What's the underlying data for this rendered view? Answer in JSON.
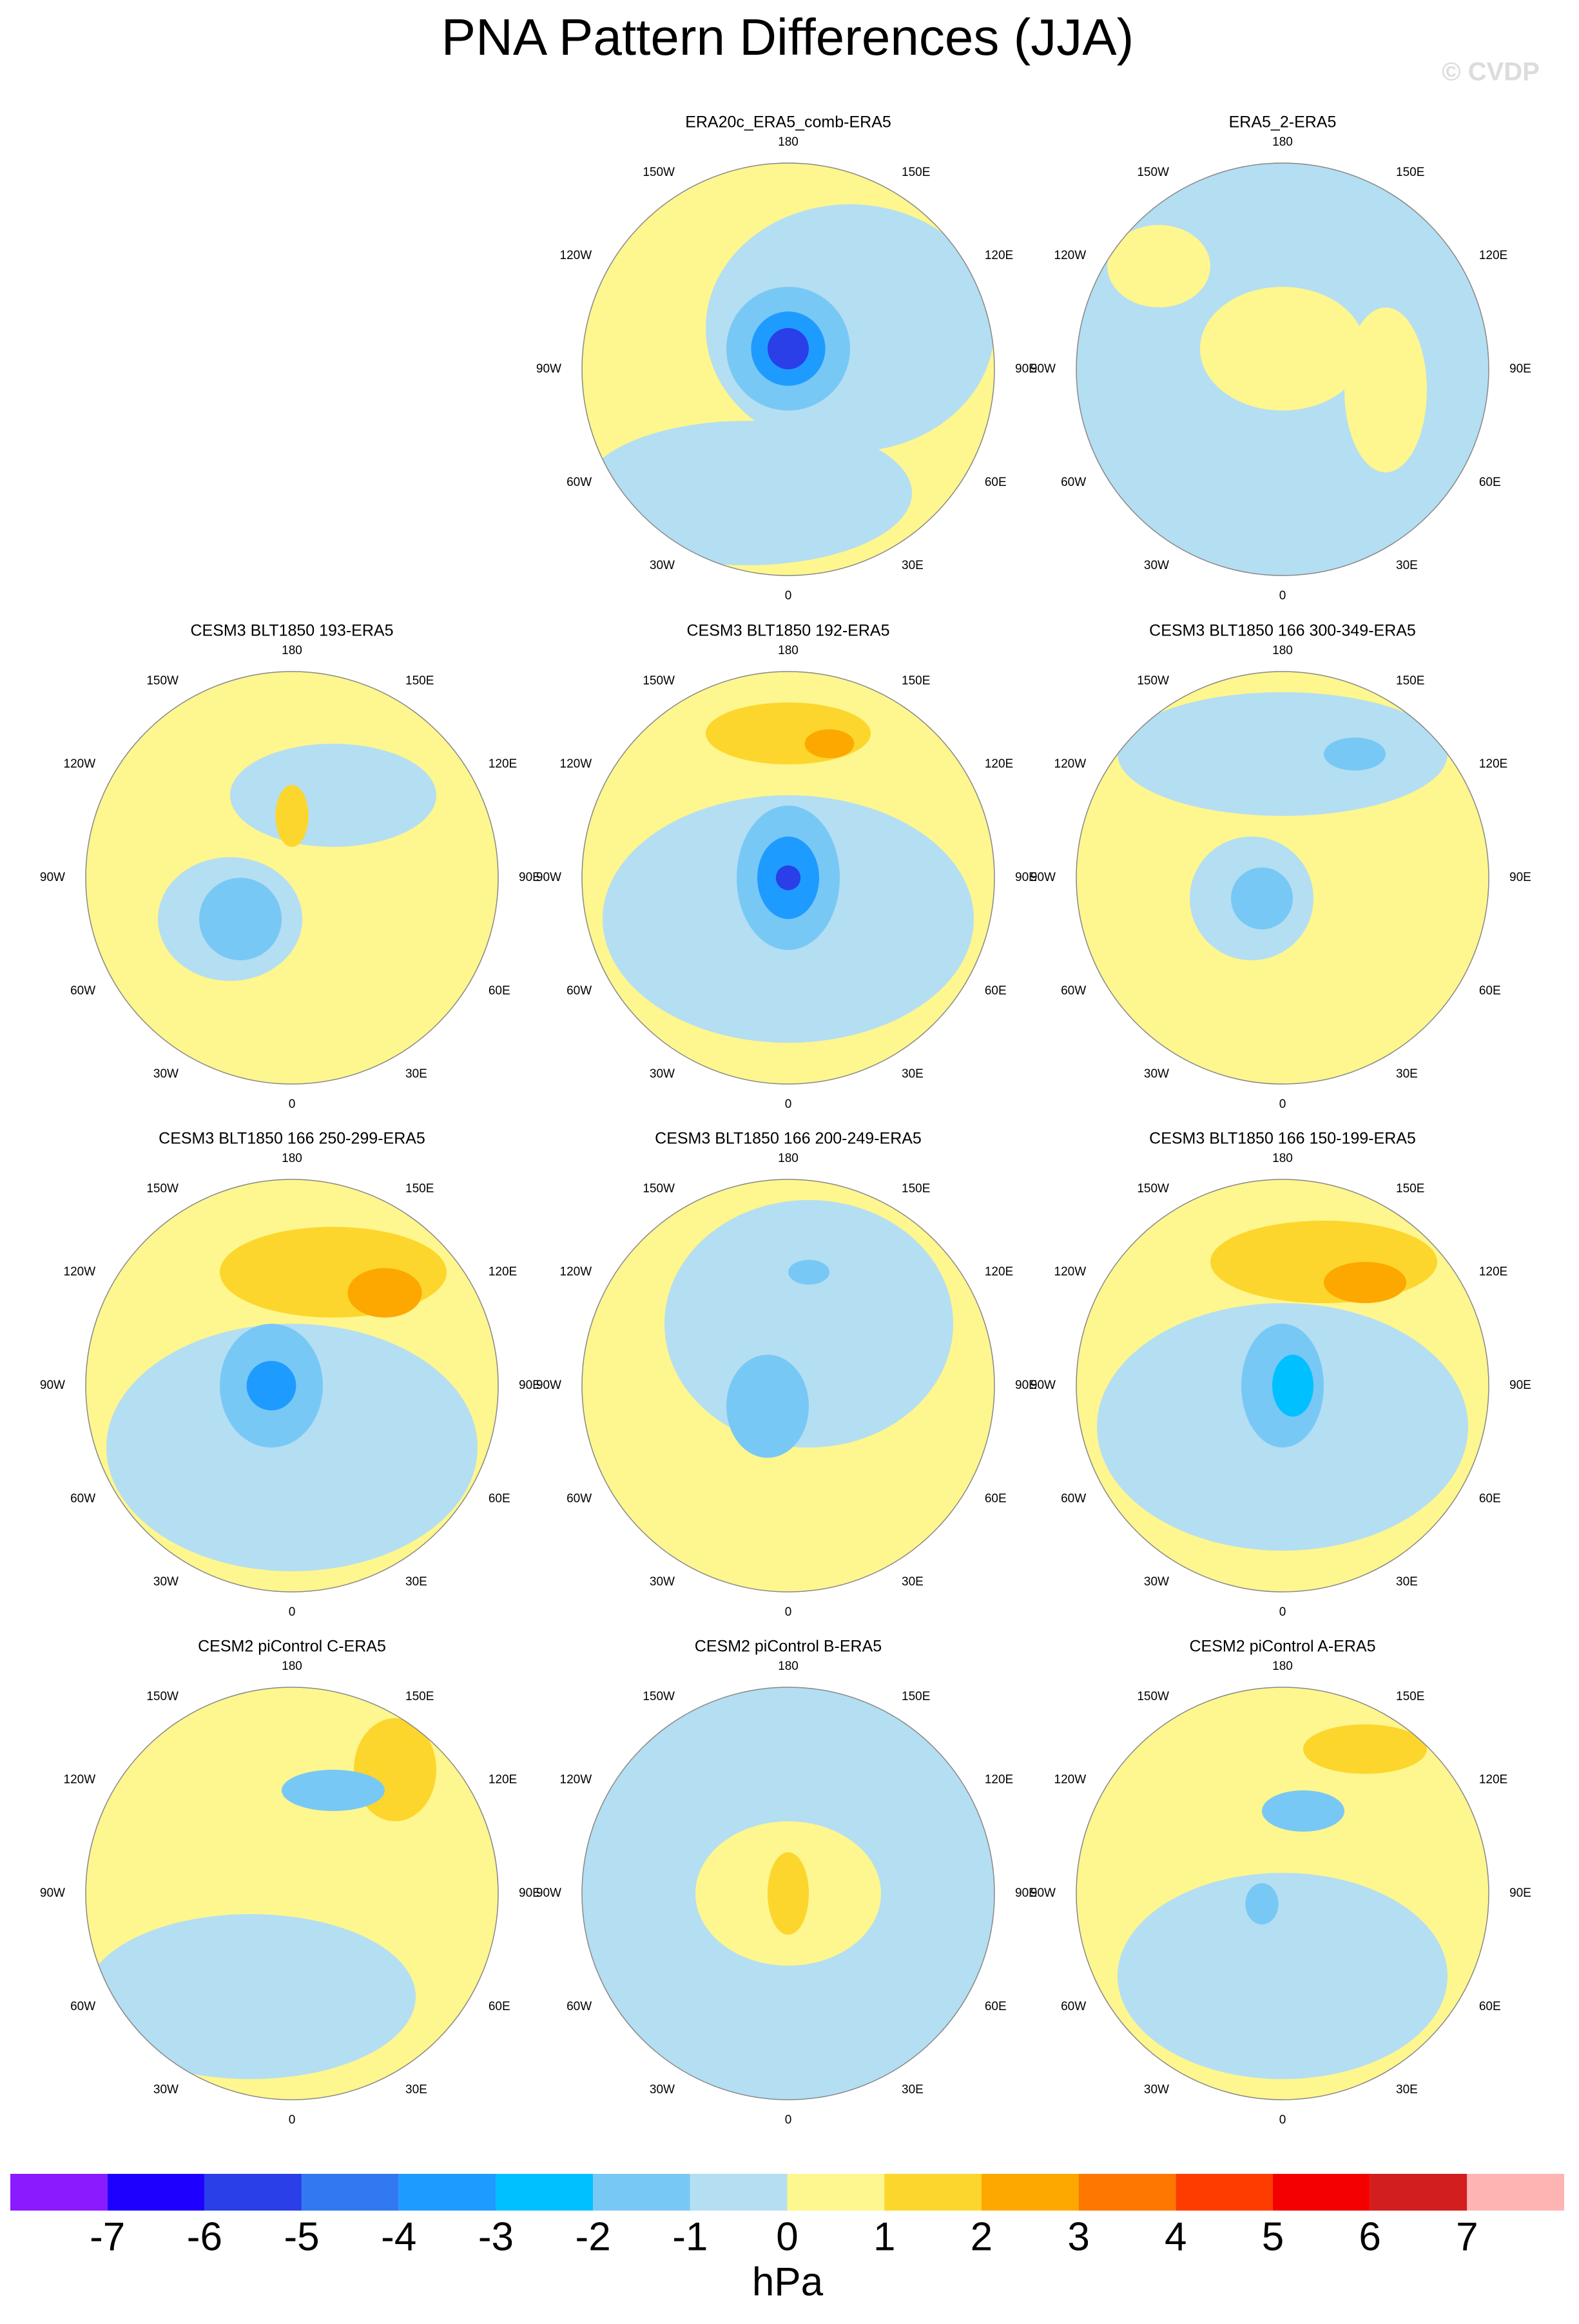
{
  "title": "PNA Pattern Differences (JJA)",
  "watermark": "© CVDP",
  "panels": [
    {
      "title": "ERA20c_ERA5_comb-ERA5"
    },
    {
      "title": "ERA5_2-ERA5"
    },
    {
      "title": "CESM3 BLT1850 193-ERA5"
    },
    {
      "title": "CESM3 BLT1850 192-ERA5"
    },
    {
      "title": "CESM3 BLT1850 166 300-349-ERA5"
    },
    {
      "title": "CESM3 BLT1850 166 250-299-ERA5"
    },
    {
      "title": "CESM3 BLT1850 166 200-249-ERA5"
    },
    {
      "title": "CESM3 BLT1850 166 150-199-ERA5"
    },
    {
      "title": "CESM2 piControl C-ERA5"
    },
    {
      "title": "CESM2 piControl B-ERA5"
    },
    {
      "title": "CESM2 piControl A-ERA5"
    }
  ],
  "lon_labels": [
    "180",
    "150E",
    "120E",
    "90E",
    "60E",
    "30E",
    "0",
    "30W",
    "60W",
    "90W",
    "120W",
    "150W"
  ],
  "colorbar": {
    "colors": [
      "#8c1aff",
      "#1e00ff",
      "#2a3fe8",
      "#3278f0",
      "#1e9bff",
      "#00c0ff",
      "#78c8f5",
      "#b4def2",
      "#fef68f",
      "#fcd62c",
      "#fca800",
      "#fc7800",
      "#ff3c00",
      "#f50000",
      "#d21e1e",
      "#ffb4b4"
    ],
    "ticks": [
      -7,
      -6,
      -5,
      -4,
      -3,
      -2,
      -1,
      0,
      1,
      2,
      3,
      4,
      5,
      6,
      7
    ],
    "unit": "hPa"
  }
}
